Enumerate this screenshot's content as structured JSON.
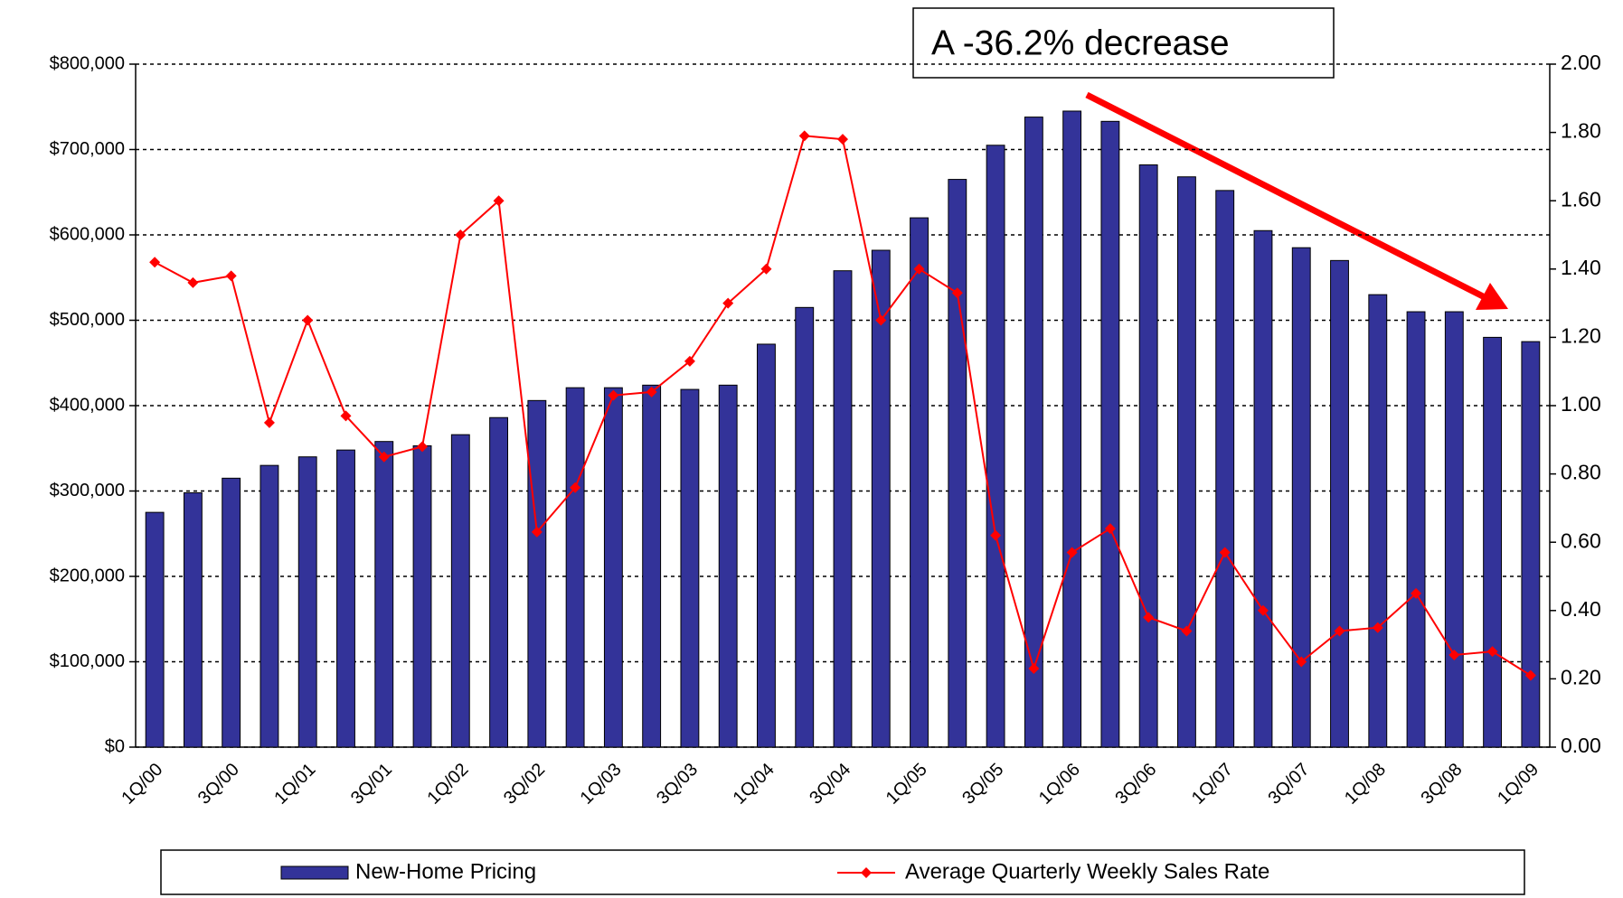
{
  "chart_data": {
    "type": "bar",
    "annotation": "A -36.2% decrease",
    "categories": [
      "1Q/00",
      null,
      "3Q/00",
      null,
      "1Q/01",
      null,
      "3Q/01",
      null,
      "1Q/02",
      null,
      "3Q/02",
      null,
      "1Q/03",
      null,
      "3Q/03",
      null,
      "1Q/04",
      null,
      "3Q/04",
      null,
      "1Q/05",
      null,
      "3Q/05",
      null,
      "1Q/06",
      null,
      "3Q/06",
      null,
      "1Q/07",
      null,
      "3Q/07",
      null,
      "1Q/08",
      null,
      "3Q/08",
      null,
      "1Q/09"
    ],
    "series": [
      {
        "name": "New-Home Pricing",
        "type": "bar",
        "color": "#333399",
        "values": [
          275000,
          298000,
          315000,
          330000,
          340000,
          348000,
          358000,
          353000,
          366000,
          386000,
          406000,
          421000,
          421000,
          424000,
          419000,
          424000,
          472000,
          515000,
          558000,
          582000,
          620000,
          665000,
          705000,
          738000,
          745000,
          733000,
          682000,
          668000,
          652000,
          605000,
          585000,
          570000,
          530000,
          510000,
          510000,
          480000,
          475000
        ]
      },
      {
        "name": "Average Quarterly Weekly Sales Rate",
        "type": "line",
        "axis": "y2",
        "color": "#ff0000",
        "values": [
          1.42,
          1.36,
          1.38,
          0.95,
          1.25,
          0.97,
          0.85,
          0.88,
          1.5,
          1.6,
          0.63,
          0.76,
          1.03,
          1.04,
          1.13,
          1.3,
          1.4,
          1.79,
          1.78,
          1.25,
          1.4,
          1.33,
          0.62,
          0.23,
          0.57,
          0.64,
          0.38,
          0.34,
          0.57,
          0.4,
          0.25,
          0.34,
          0.35,
          0.45,
          0.27,
          0.28,
          0.21
        ]
      }
    ],
    "ylim": [
      0,
      800000
    ],
    "yticks": [
      {
        "value": 0,
        "label": "$0"
      },
      {
        "value": 100000,
        "label": "$100,000"
      },
      {
        "value": 200000,
        "label": "$200,000"
      },
      {
        "value": 300000,
        "label": "$300,000"
      },
      {
        "value": 400000,
        "label": "$400,000"
      },
      {
        "value": 500000,
        "label": "$500,000"
      },
      {
        "value": 600000,
        "label": "$600,000"
      },
      {
        "value": 700000,
        "label": "$700,000"
      },
      {
        "value": 800000,
        "label": "$800,000"
      }
    ],
    "y2lim": [
      0,
      2
    ],
    "y2ticks": [
      {
        "value": 0,
        "label": "0.00"
      },
      {
        "value": 0.2,
        "label": "0.20"
      },
      {
        "value": 0.4,
        "label": "0.40"
      },
      {
        "value": 0.6,
        "label": "0.60"
      },
      {
        "value": 0.8,
        "label": "0.80"
      },
      {
        "value": 1,
        "label": "1.00"
      },
      {
        "value": 1.2,
        "label": "1.20"
      },
      {
        "value": 1.4,
        "label": "1.40"
      },
      {
        "value": 1.6,
        "label": "1.60"
      },
      {
        "value": 1.8,
        "label": "1.80"
      },
      {
        "value": 2,
        "label": "2.00"
      }
    ],
    "grid": true,
    "legend": "bottom"
  }
}
